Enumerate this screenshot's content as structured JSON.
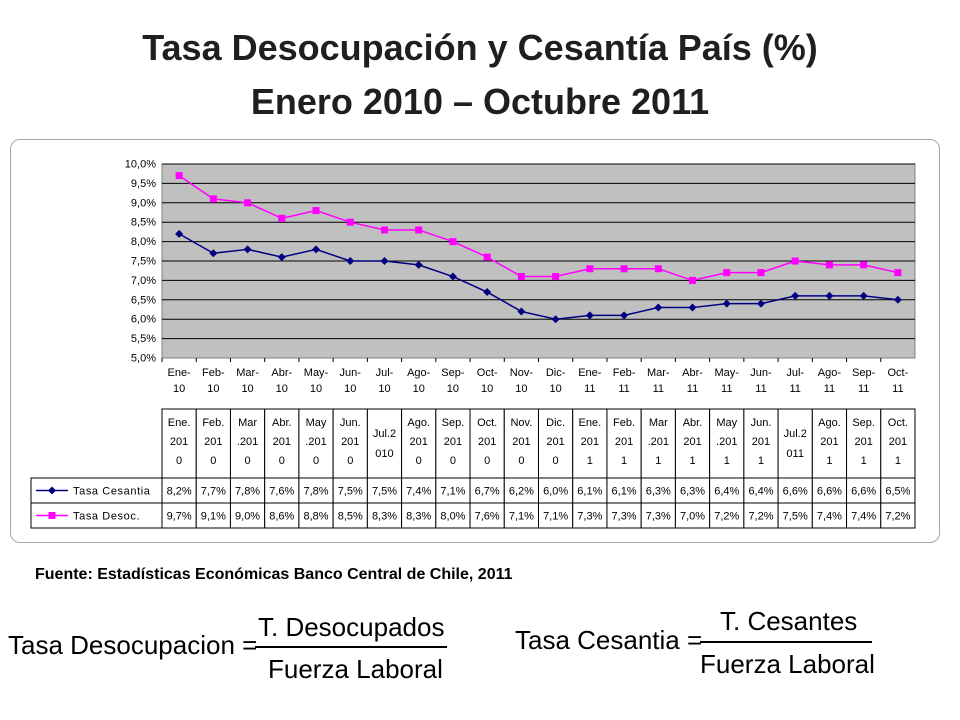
{
  "title": "Tasa Desocupación y Cesantía País (%)",
  "subtitle": "Enero 2010 – Octubre 2011",
  "source": "Fuente: Estadísticas Económicas Banco Central de Chile, 2011",
  "formulas": {
    "desocupacion": {
      "lhs": "Tasa Desocupacion =",
      "numerator": "T. Desocupados",
      "denominator": "Fuerza Laboral"
    },
    "cesantia": {
      "lhs": "Tasa Cesantia =",
      "numerator": "T. Cesantes",
      "denominator": "Fuerza Laboral"
    }
  },
  "chart_data": {
    "type": "line",
    "categories": [
      [
        "Ene-",
        "10"
      ],
      [
        "Feb-",
        "10"
      ],
      [
        "Mar-",
        "10"
      ],
      [
        "Abr-",
        "10"
      ],
      [
        "May-",
        "10"
      ],
      [
        "Jun-",
        "10"
      ],
      [
        "Jul-",
        "10"
      ],
      [
        "Ago-",
        "10"
      ],
      [
        "Sep-",
        "10"
      ],
      [
        "Oct-",
        "10"
      ],
      [
        "Nov-",
        "10"
      ],
      [
        "Dic-",
        "10"
      ],
      [
        "Ene-",
        "11"
      ],
      [
        "Feb-",
        "11"
      ],
      [
        "Mar-",
        "11"
      ],
      [
        "Abr-",
        "11"
      ],
      [
        "May-",
        "11"
      ],
      [
        "Jun-",
        "11"
      ],
      [
        "Jul-",
        "11"
      ],
      [
        "Ago-",
        "11"
      ],
      [
        "Sep-",
        "11"
      ],
      [
        "Oct-",
        "11"
      ]
    ],
    "table_headers": [
      [
        "Ene.",
        "201",
        "0"
      ],
      [
        "Feb.",
        "201",
        "0"
      ],
      [
        "Mar",
        ".201",
        "0"
      ],
      [
        "Abr.",
        "201",
        "0"
      ],
      [
        "May",
        ".201",
        "0"
      ],
      [
        "Jun.",
        "201",
        "0"
      ],
      [
        "Jul.2",
        "010"
      ],
      [
        "Ago.",
        "201",
        "0"
      ],
      [
        "Sep.",
        "201",
        "0"
      ],
      [
        "Oct.",
        "201",
        "0"
      ],
      [
        "Nov.",
        "201",
        "0"
      ],
      [
        "Dic.",
        "201",
        "0"
      ],
      [
        "Ene.",
        "201",
        "1"
      ],
      [
        "Feb.",
        "201",
        "1"
      ],
      [
        "Mar",
        ".201",
        "1"
      ],
      [
        "Abr.",
        "201",
        "1"
      ],
      [
        "May",
        ".201",
        "1"
      ],
      [
        "Jun.",
        "201",
        "1"
      ],
      [
        "Jul.2",
        "011"
      ],
      [
        "Ago.",
        "201",
        "1"
      ],
      [
        "Sep.",
        "201",
        "1"
      ],
      [
        "Oct.",
        "201",
        "1"
      ]
    ],
    "yticks": [
      "5,0%",
      "5,5%",
      "6,0%",
      "6,5%",
      "7,0%",
      "7,5%",
      "8,0%",
      "8,5%",
      "9,0%",
      "9,5%",
      "10,0%"
    ],
    "ylim": [
      5.0,
      10.0
    ],
    "grid": true,
    "plot_background": "#c0c0c0",
    "legend": "table below the chart",
    "series": [
      {
        "name": "Tasa Cesantia",
        "color": "#000080",
        "marker": "diamond",
        "values": [
          8.2,
          7.7,
          7.8,
          7.6,
          7.8,
          7.5,
          7.5,
          7.4,
          7.1,
          6.7,
          6.2,
          6.0,
          6.1,
          6.1,
          6.3,
          6.3,
          6.4,
          6.4,
          6.6,
          6.6,
          6.6,
          6.5
        ],
        "labels": [
          "8,2%",
          "7,7%",
          "7,8%",
          "7,6%",
          "7,8%",
          "7,5%",
          "7,5%",
          "7,4%",
          "7,1%",
          "6,7%",
          "6,2%",
          "6,0%",
          "6,1%",
          "6,1%",
          "6,3%",
          "6,3%",
          "6,4%",
          "6,4%",
          "6,6%",
          "6,6%",
          "6,6%",
          "6,5%"
        ]
      },
      {
        "name": "Tasa Desoc.",
        "color": "#ff00ff",
        "marker": "square",
        "values": [
          9.7,
          9.1,
          9.0,
          8.6,
          8.8,
          8.5,
          8.3,
          8.3,
          8.0,
          7.6,
          7.1,
          7.1,
          7.3,
          7.3,
          7.3,
          7.0,
          7.2,
          7.2,
          7.5,
          7.4,
          7.4,
          7.2
        ],
        "labels": [
          "9,7%",
          "9,1%",
          "9,0%",
          "8,6%",
          "8,8%",
          "8,5%",
          "8,3%",
          "8,3%",
          "8,0%",
          "7,6%",
          "7,1%",
          "7,1%",
          "7,3%",
          "7,3%",
          "7,3%",
          "7,0%",
          "7,2%",
          "7,2%",
          "7,5%",
          "7,4%",
          "7,4%",
          "7,2%"
        ]
      }
    ]
  }
}
